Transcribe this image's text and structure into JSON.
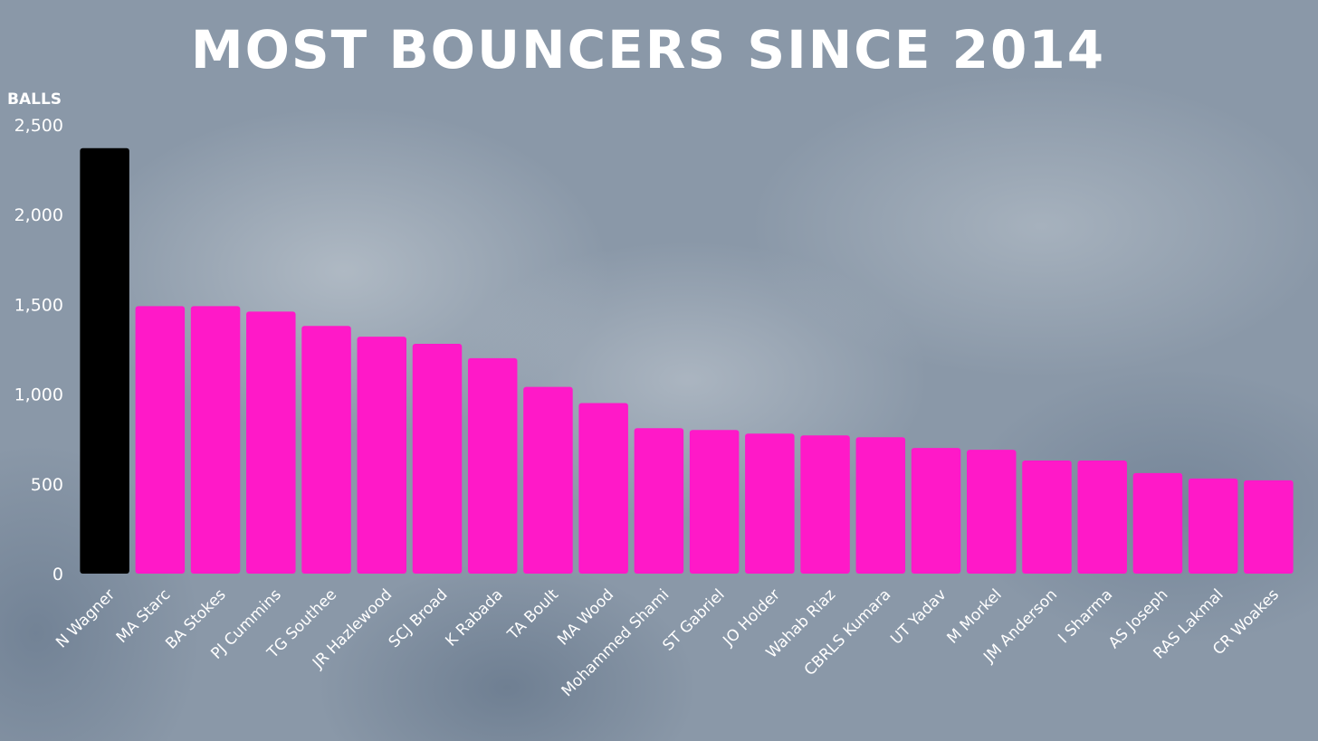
{
  "chart_data": {
    "type": "bar",
    "title": "MOST BOUNCERS SINCE 2014",
    "ylabel": "BALLS",
    "xlabel": "",
    "ylim": [
      0,
      2500
    ],
    "yticks": [
      "0",
      "500",
      "1,000",
      "1,500",
      "2,000",
      "2,500"
    ],
    "grid": false,
    "categories": [
      "N Wagner",
      "MA Starc",
      "BA Stokes",
      "PJ Cummins",
      "TG Southee",
      "JR Hazlewood",
      "SCJ Broad",
      "K Rabada",
      "TA Boult",
      "MA Wood",
      "Mohammed Shami",
      "ST Gabriel",
      "JO Holder",
      "Wahab Riaz",
      "CBRLS Kumara",
      "UT Yadav",
      "M Morkel",
      "JM Anderson",
      "I Sharma",
      "AS Joseph",
      "RAS Lakmal",
      "CR Woakes"
    ],
    "values": [
      2370,
      1490,
      1490,
      1460,
      1380,
      1320,
      1280,
      1200,
      1040,
      950,
      810,
      800,
      780,
      770,
      760,
      700,
      690,
      630,
      630,
      560,
      530,
      520
    ],
    "colors": {
      "highlight": "#000000",
      "bar": "#ff19c8",
      "text": "#ffffff"
    },
    "highlight_index": 0
  }
}
